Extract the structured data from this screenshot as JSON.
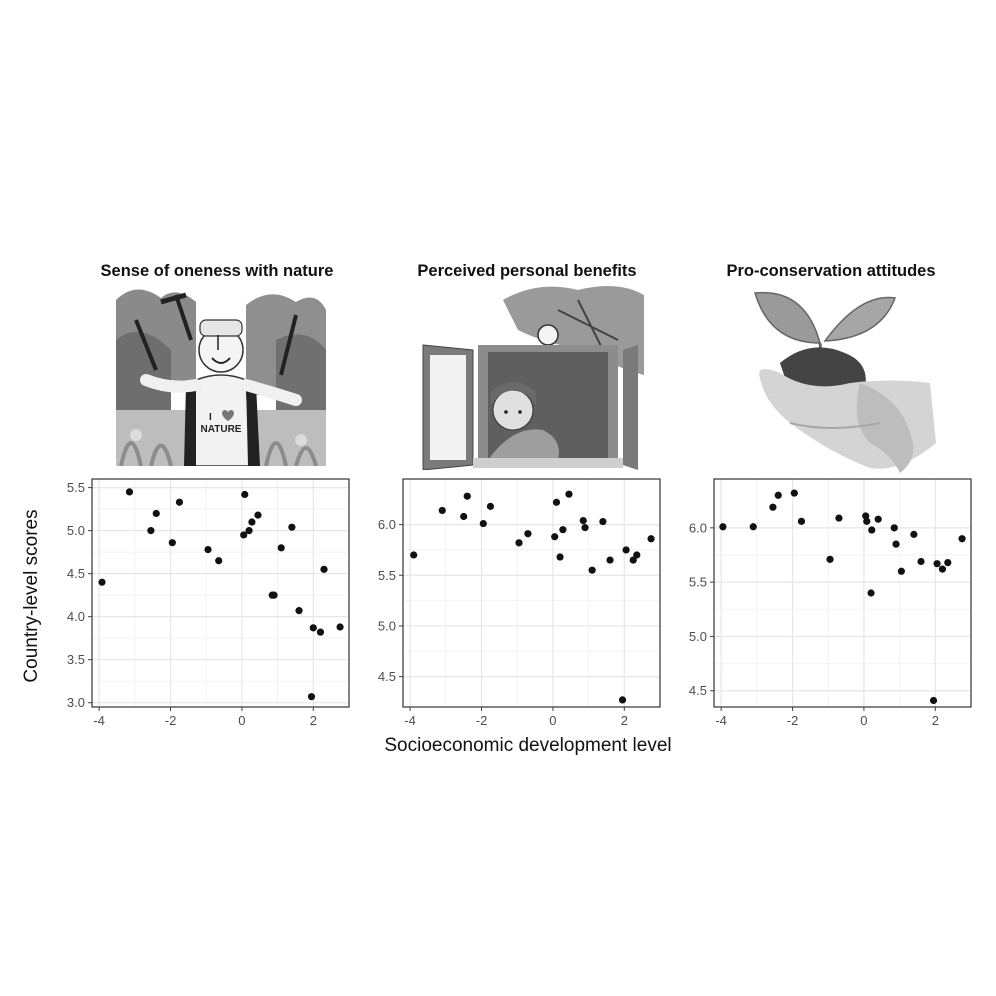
{
  "figure": {
    "shared_xlabel": "Socioeconomic development level",
    "shared_ylabel": "Country-level scores"
  },
  "illustrations": [
    {
      "icon": "person-nature-shirt-icon",
      "shirt_text_1": "I",
      "shirt_text_2": "NATURE"
    },
    {
      "icon": "window-girl-bird-icon"
    },
    {
      "icon": "hands-seedling-icon"
    }
  ],
  "chart_data": [
    {
      "type": "scatter",
      "title": "Sense of oneness with nature",
      "xlim": [
        -4.2,
        3.0
      ],
      "ylim": [
        2.95,
        5.6
      ],
      "xticks": [
        -4,
        -2,
        0,
        2
      ],
      "xtick_labels": [
        "-4",
        "-2",
        "0",
        "2"
      ],
      "yticks": [
        3.0,
        3.5,
        4.0,
        4.5,
        5.0,
        5.5
      ],
      "ytick_labels": [
        "3.0",
        "3.5",
        "4.0",
        "4.5",
        "5.0",
        "5.5"
      ],
      "grid": true,
      "x": [
        -3.92,
        -3.15,
        -2.55,
        -2.4,
        -1.95,
        -1.75,
        -0.95,
        -0.65,
        0.05,
        0.08,
        0.2,
        0.28,
        0.45,
        0.85,
        0.9,
        1.1,
        1.4,
        1.6,
        1.95,
        2.0,
        2.2,
        2.3,
        2.75
      ],
      "y": [
        4.4,
        5.45,
        5.0,
        5.2,
        4.86,
        5.33,
        4.78,
        4.65,
        4.95,
        5.42,
        5.0,
        5.1,
        5.18,
        4.25,
        4.25,
        4.8,
        5.04,
        4.07,
        3.07,
        3.87,
        3.82,
        4.55,
        3.88
      ]
    },
    {
      "type": "scatter",
      "title": "Perceived personal benefits",
      "xlim": [
        -4.2,
        3.0
      ],
      "ylim": [
        4.2,
        6.45
      ],
      "xticks": [
        -4,
        -2,
        0,
        2
      ],
      "xtick_labels": [
        "-4",
        "-2",
        "0",
        "2"
      ],
      "yticks": [
        4.5,
        5.0,
        5.5,
        6.0
      ],
      "ytick_labels": [
        "4.5",
        "5.0",
        "5.5",
        "6.0"
      ],
      "grid": true,
      "x": [
        -3.9,
        -3.1,
        -2.5,
        -2.4,
        -1.95,
        -1.75,
        -0.95,
        -0.7,
        0.05,
        0.1,
        0.2,
        0.28,
        0.45,
        0.85,
        0.9,
        1.1,
        1.4,
        1.6,
        1.95,
        2.05,
        2.25,
        2.35,
        2.75
      ],
      "y": [
        5.7,
        6.14,
        6.08,
        6.28,
        6.01,
        6.18,
        5.82,
        5.91,
        5.88,
        6.22,
        5.68,
        5.95,
        6.3,
        6.04,
        5.97,
        5.55,
        6.03,
        5.65,
        4.27,
        5.75,
        5.65,
        5.7,
        5.86
      ]
    },
    {
      "type": "scatter",
      "title": "Pro-conservation attitudes",
      "xlim": [
        -4.2,
        3.0
      ],
      "ylim": [
        4.35,
        6.45
      ],
      "xticks": [
        -4,
        -2,
        0,
        2
      ],
      "xtick_labels": [
        "-4",
        "-2",
        "0",
        "2"
      ],
      "yticks": [
        4.5,
        5.0,
        5.5,
        6.0
      ],
      "ytick_labels": [
        "4.5",
        "5.0",
        "5.5",
        "6.0"
      ],
      "grid": true,
      "x": [
        -3.95,
        -3.1,
        -2.55,
        -2.4,
        -1.95,
        -1.75,
        -0.95,
        -0.7,
        0.05,
        0.08,
        0.2,
        0.22,
        0.4,
        0.85,
        0.9,
        1.05,
        1.4,
        1.6,
        1.95,
        2.05,
        2.2,
        2.35,
        2.75
      ],
      "y": [
        6.01,
        6.01,
        6.19,
        6.3,
        6.32,
        6.06,
        5.71,
        6.09,
        6.11,
        6.06,
        5.4,
        5.98,
        6.08,
        6.0,
        5.85,
        5.6,
        5.94,
        5.69,
        4.41,
        5.67,
        5.62,
        5.68,
        5.9
      ]
    }
  ]
}
